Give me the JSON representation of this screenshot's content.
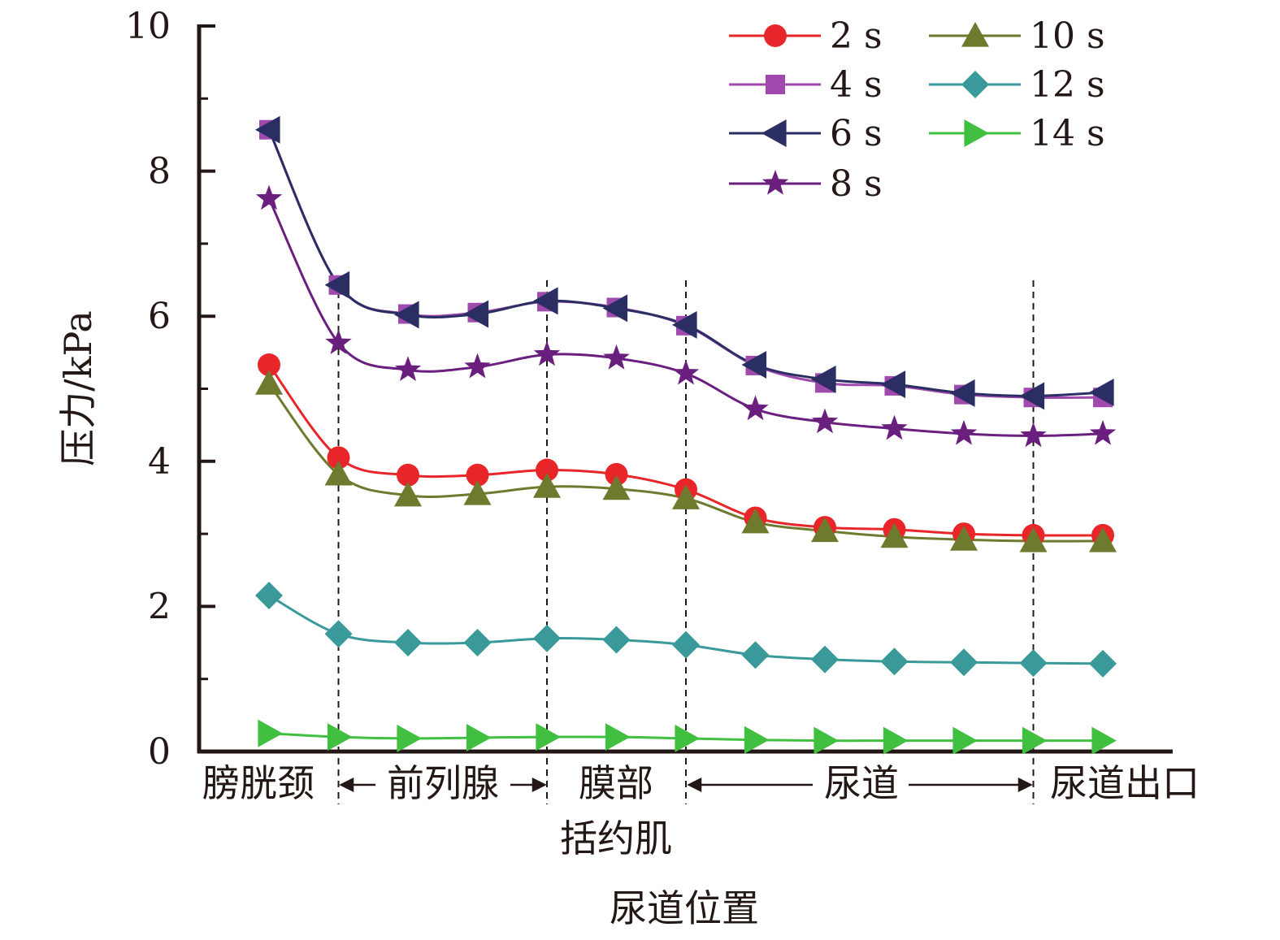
{
  "chart_data": {
    "type": "line",
    "title": "",
    "xlabel": "尿道位置",
    "ylabel": "压力/kPa",
    "ylim": [
      0,
      10
    ],
    "yticks": [
      "0",
      "2",
      "4",
      "6",
      "8",
      "10"
    ],
    "x_count": 13,
    "legend_position": "top-right",
    "region_labels": {
      "bladder_neck": "膀胱颈",
      "prostate": "前列腺",
      "membranous": "膜部",
      "sphincter": "括约肌",
      "urethra": "尿道",
      "urethra_outlet": "尿道出口"
    },
    "series": [
      {
        "name": "2 s",
        "color": "#e8262a",
        "marker": "circle",
        "values": [
          5.33,
          4.05,
          3.81,
          3.81,
          3.88,
          3.82,
          3.61,
          3.22,
          3.09,
          3.06,
          3.0,
          2.98,
          2.98
        ]
      },
      {
        "name": "4 s",
        "color": "#a04aae",
        "marker": "square",
        "values": [
          8.57,
          6.43,
          6.03,
          6.05,
          6.2,
          6.12,
          5.87,
          5.32,
          5.08,
          5.04,
          4.92,
          4.88,
          4.88
        ]
      },
      {
        "name": "6 s",
        "color": "#2b2e63",
        "marker": "triangle-left",
        "values": [
          8.57,
          6.43,
          6.02,
          6.03,
          6.21,
          6.11,
          5.88,
          5.33,
          5.13,
          5.06,
          4.94,
          4.9,
          4.95
        ]
      },
      {
        "name": "8 s",
        "color": "#6a1f7e",
        "marker": "star",
        "values": [
          7.62,
          5.63,
          5.26,
          5.3,
          5.47,
          5.42,
          5.21,
          4.72,
          4.54,
          4.45,
          4.38,
          4.35,
          4.38
        ]
      },
      {
        "name": "10 s",
        "color": "#6e7a2d",
        "marker": "triangle-up",
        "values": [
          5.07,
          3.82,
          3.53,
          3.55,
          3.65,
          3.62,
          3.49,
          3.16,
          3.04,
          2.96,
          2.92,
          2.9,
          2.9
        ]
      },
      {
        "name": "12 s",
        "color": "#3a9a9a",
        "marker": "diamond",
        "values": [
          2.15,
          1.62,
          1.5,
          1.5,
          1.56,
          1.54,
          1.47,
          1.33,
          1.27,
          1.24,
          1.23,
          1.22,
          1.21
        ]
      },
      {
        "name": "14 s",
        "color": "#40bf40",
        "marker": "triangle-right",
        "values": [
          0.25,
          0.2,
          0.18,
          0.19,
          0.2,
          0.2,
          0.18,
          0.16,
          0.15,
          0.15,
          0.15,
          0.15,
          0.15
        ]
      }
    ]
  }
}
